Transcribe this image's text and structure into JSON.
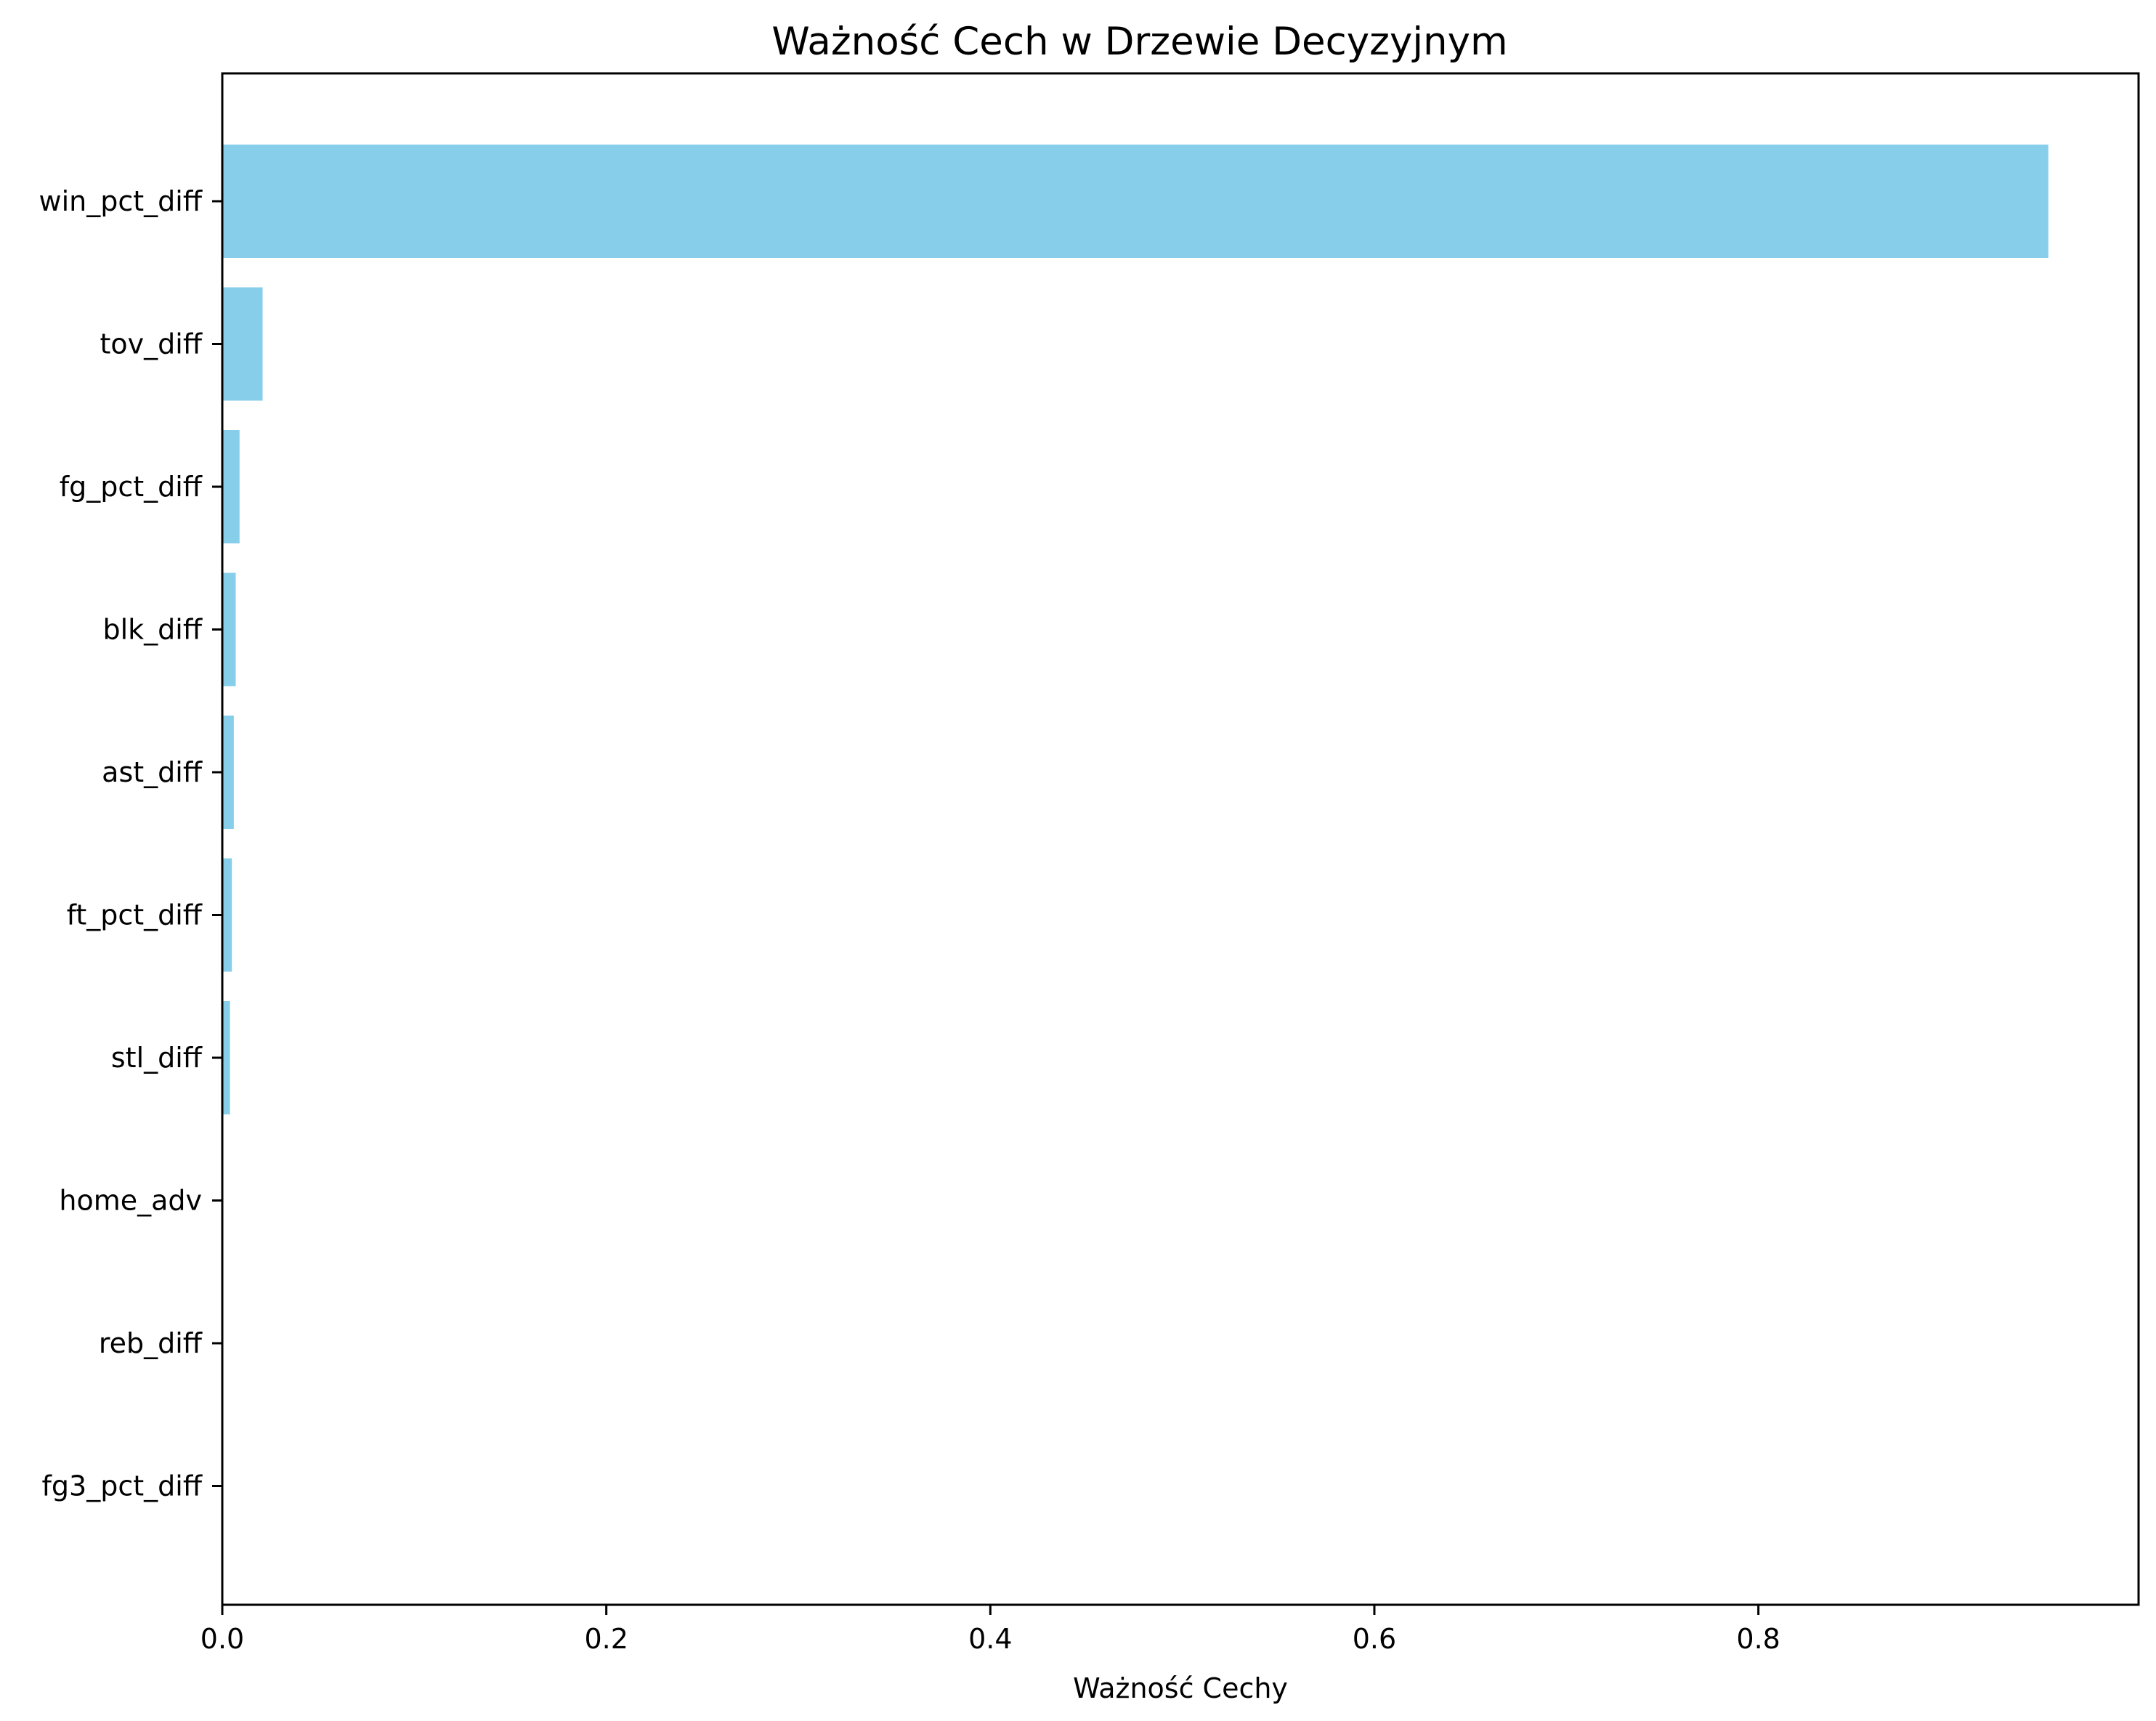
{
  "chart_data": {
    "type": "bar",
    "orientation": "horizontal",
    "title": "Ważność Cech w Drzewie Decyzyjnym",
    "xlabel": "Ważność Cechy",
    "ylabel": "",
    "categories": [
      "win_pct_diff",
      "tov_diff",
      "fg_pct_diff",
      "blk_diff",
      "ast_diff",
      "ft_pct_diff",
      "stl_diff",
      "home_adv",
      "reb_diff",
      "fg3_pct_diff"
    ],
    "values": [
      0.951,
      0.021,
      0.009,
      0.007,
      0.006,
      0.005,
      0.004,
      0.0,
      0.0,
      0.0
    ],
    "xlim": [
      0,
      0.998
    ],
    "xticks": [
      0.0,
      0.2,
      0.4,
      0.6,
      0.8
    ],
    "xtick_labels": [
      "0.0",
      "0.2",
      "0.4",
      "0.6",
      "0.8"
    ],
    "bar_color": "#87ceeb",
    "grid": false,
    "legend": "none"
  }
}
